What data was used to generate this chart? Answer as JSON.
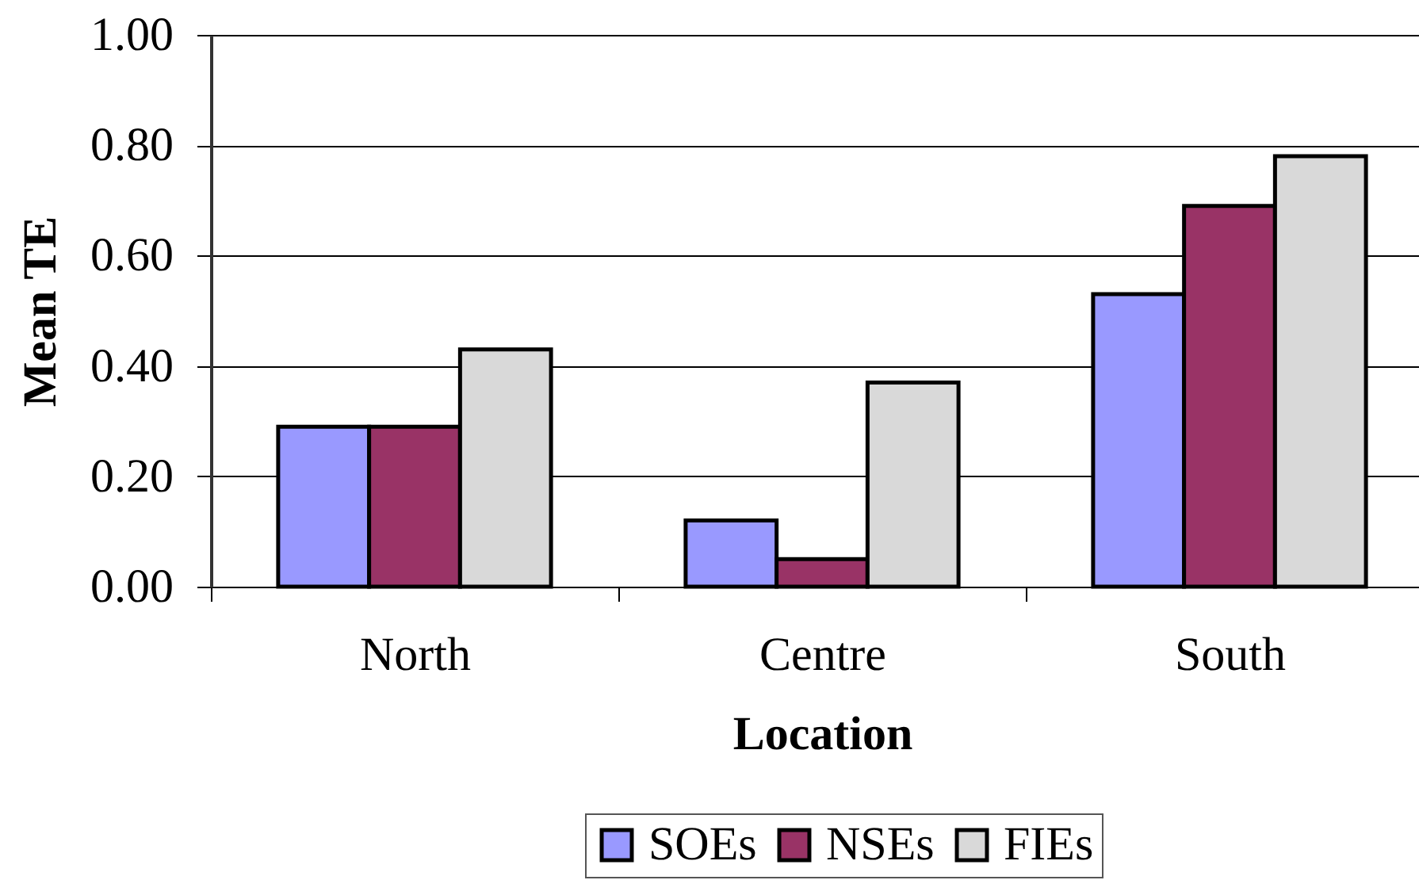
{
  "chart_data": {
    "type": "bar",
    "xlabel": "Location",
    "ylabel": "Mean TE",
    "categories": [
      "North",
      "Centre",
      "South"
    ],
    "series": [
      {
        "name": "SOEs",
        "color": "#9999ff",
        "values": [
          0.29,
          0.12,
          0.53
        ]
      },
      {
        "name": "NSEs",
        "color": "#993366",
        "values": [
          0.29,
          0.05,
          0.69
        ]
      },
      {
        "name": "FIEs",
        "color": "#d9d9d9",
        "values": [
          0.43,
          0.37,
          0.78
        ]
      }
    ],
    "ylim": [
      0,
      1
    ],
    "yticks": [
      {
        "value": 0,
        "label": "0.00"
      },
      {
        "value": 0.2,
        "label": "0.20"
      },
      {
        "value": 0.4,
        "label": "0.40"
      },
      {
        "value": 0.6,
        "label": "0.60"
      },
      {
        "value": 0.8,
        "label": "0.80"
      },
      {
        "value": 1,
        "label": "1.00"
      }
    ],
    "grid": "y",
    "legend": "bottom"
  }
}
